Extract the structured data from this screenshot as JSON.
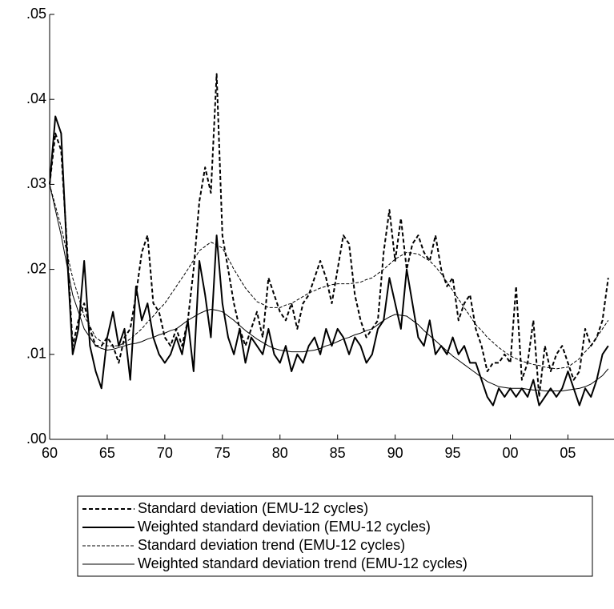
{
  "chart_data": {
    "type": "line",
    "x": [
      1960,
      1960.5,
      1961,
      1961.5,
      1962,
      1962.5,
      1963,
      1963.5,
      1964,
      1964.5,
      1965,
      1965.5,
      1966,
      1966.5,
      1967,
      1967.5,
      1968,
      1968.5,
      1969,
      1969.5,
      1970,
      1970.5,
      1971,
      1971.5,
      1972,
      1972.5,
      1973,
      1973.5,
      1974,
      1974.5,
      1975,
      1975.5,
      1976,
      1976.5,
      1977,
      1977.5,
      1978,
      1978.5,
      1979,
      1979.5,
      1980,
      1980.5,
      1981,
      1981.5,
      1982,
      1982.5,
      1983,
      1983.5,
      1984,
      1984.5,
      1985,
      1985.5,
      1986,
      1986.5,
      1987,
      1987.5,
      1988,
      1988.5,
      1989,
      1989.5,
      1990,
      1990.5,
      1991,
      1991.5,
      1992,
      1992.5,
      1993,
      1993.5,
      1994,
      1994.5,
      1995,
      1995.5,
      1996,
      1996.5,
      1997,
      1997.5,
      1998,
      1998.5,
      1999,
      1999.5,
      2000,
      2000.5,
      2001,
      2001.5,
      2002,
      2002.5,
      2003,
      2003.5,
      2004,
      2004.5,
      2005,
      2005.5,
      2006,
      2006.5,
      2007,
      2007.5,
      2008,
      2008.5
    ],
    "xlim": [
      1960,
      2009
    ],
    "xticks": [
      {
        "value": 1960,
        "label": "60"
      },
      {
        "value": 1965,
        "label": "65"
      },
      {
        "value": 1970,
        "label": "70"
      },
      {
        "value": 1975,
        "label": "75"
      },
      {
        "value": 1980,
        "label": "80"
      },
      {
        "value": 1985,
        "label": "85"
      },
      {
        "value": 1990,
        "label": "90"
      },
      {
        "value": 1995,
        "label": "95"
      },
      {
        "value": 2000,
        "label": "00"
      },
      {
        "value": 2005,
        "label": "05"
      }
    ],
    "ylim": [
      0,
      0.05
    ],
    "yticks": [
      {
        "value": 0,
        "label": ".00"
      },
      {
        "value": 0.01,
        "label": ".01"
      },
      {
        "value": 0.02,
        "label": ".02"
      },
      {
        "value": 0.03,
        "label": ".03"
      },
      {
        "value": 0.04,
        "label": ".04"
      },
      {
        "value": 0.05,
        "label": ".05"
      }
    ],
    "series": [
      {
        "name": "Standard deviation (EMU-12 cycles)",
        "color": "#000000",
        "style": "dashed",
        "width": "thick",
        "values": [
          0.03,
          0.036,
          0.034,
          0.023,
          0.011,
          0.014,
          0.016,
          0.013,
          0.011,
          0.011,
          0.012,
          0.011,
          0.009,
          0.012,
          0.013,
          0.017,
          0.022,
          0.024,
          0.016,
          0.015,
          0.012,
          0.011,
          0.013,
          0.011,
          0.014,
          0.02,
          0.028,
          0.032,
          0.029,
          0.043,
          0.024,
          0.02,
          0.016,
          0.013,
          0.011,
          0.013,
          0.015,
          0.012,
          0.019,
          0.017,
          0.015,
          0.014,
          0.016,
          0.013,
          0.016,
          0.017,
          0.019,
          0.021,
          0.019,
          0.016,
          0.02,
          0.024,
          0.023,
          0.017,
          0.014,
          0.012,
          0.013,
          0.014,
          0.022,
          0.027,
          0.021,
          0.026,
          0.02,
          0.023,
          0.024,
          0.022,
          0.021,
          0.024,
          0.02,
          0.018,
          0.019,
          0.014,
          0.016,
          0.017,
          0.013,
          0.011,
          0.008,
          0.009,
          0.009,
          0.01,
          0.009,
          0.018,
          0.007,
          0.009,
          0.014,
          0.005,
          0.011,
          0.008,
          0.01,
          0.011,
          0.009,
          0.007,
          0.008,
          0.013,
          0.011,
          0.012,
          0.014,
          0.019
        ]
      },
      {
        "name": "Weighted standard deviation (EMU-12 cycles)",
        "color": "#000000",
        "style": "solid",
        "width": "thick",
        "values": [
          0.03,
          0.038,
          0.036,
          0.022,
          0.01,
          0.013,
          0.021,
          0.011,
          0.008,
          0.006,
          0.012,
          0.015,
          0.011,
          0.013,
          0.007,
          0.018,
          0.014,
          0.016,
          0.012,
          0.01,
          0.009,
          0.01,
          0.012,
          0.01,
          0.014,
          0.008,
          0.021,
          0.017,
          0.012,
          0.024,
          0.016,
          0.012,
          0.01,
          0.013,
          0.009,
          0.012,
          0.011,
          0.01,
          0.013,
          0.01,
          0.009,
          0.011,
          0.008,
          0.01,
          0.009,
          0.011,
          0.012,
          0.01,
          0.013,
          0.011,
          0.013,
          0.012,
          0.01,
          0.012,
          0.011,
          0.009,
          0.01,
          0.013,
          0.014,
          0.019,
          0.016,
          0.013,
          0.02,
          0.016,
          0.012,
          0.011,
          0.014,
          0.01,
          0.011,
          0.01,
          0.012,
          0.01,
          0.011,
          0.009,
          0.009,
          0.007,
          0.005,
          0.004,
          0.006,
          0.005,
          0.006,
          0.005,
          0.006,
          0.005,
          0.007,
          0.004,
          0.005,
          0.006,
          0.005,
          0.006,
          0.008,
          0.006,
          0.004,
          0.006,
          0.005,
          0.007,
          0.01,
          0.011
        ]
      },
      {
        "name": "Standard deviation trend (EMU-12 cycles)",
        "color": "#000000",
        "style": "dashed",
        "width": "thin",
        "values": [
          0.03,
          0.0275,
          0.025,
          0.022,
          0.019,
          0.0168,
          0.0145,
          0.0133,
          0.012,
          0.0115,
          0.011,
          0.011,
          0.011,
          0.0114,
          0.0118,
          0.0124,
          0.013,
          0.0138,
          0.0145,
          0.0153,
          0.016,
          0.017,
          0.018,
          0.019,
          0.02,
          0.0211,
          0.0222,
          0.0227,
          0.0232,
          0.0229,
          0.0225,
          0.0213,
          0.02,
          0.0189,
          0.0178,
          0.017,
          0.0162,
          0.0159,
          0.0155,
          0.0155,
          0.0155,
          0.0158,
          0.016,
          0.0164,
          0.0168,
          0.0172,
          0.0175,
          0.0178,
          0.018,
          0.0182,
          0.0183,
          0.0183,
          0.0183,
          0.0184,
          0.0185,
          0.0188,
          0.019,
          0.0195,
          0.02,
          0.0206,
          0.0212,
          0.0216,
          0.022,
          0.0219,
          0.0218,
          0.0214,
          0.021,
          0.0203,
          0.0195,
          0.0185,
          0.0175,
          0.0165,
          0.0155,
          0.0145,
          0.0135,
          0.0128,
          0.012,
          0.0114,
          0.0108,
          0.0103,
          0.0098,
          0.0095,
          0.0092,
          0.009,
          0.0088,
          0.0087,
          0.0085,
          0.0084,
          0.0083,
          0.0084,
          0.0085,
          0.009,
          0.0095,
          0.0103,
          0.011,
          0.012,
          0.013,
          0.014
        ]
      },
      {
        "name": "Weighted standard deviation trend (EMU-12 cycles)",
        "color": "#000000",
        "style": "solid",
        "width": "thin",
        "values": [
          0.03,
          0.027,
          0.024,
          0.0205,
          0.017,
          0.015,
          0.013,
          0.012,
          0.011,
          0.0107,
          0.0105,
          0.0106,
          0.0108,
          0.011,
          0.0112,
          0.0113,
          0.0115,
          0.0118,
          0.012,
          0.0123,
          0.0125,
          0.0128,
          0.013,
          0.0135,
          0.014,
          0.0144,
          0.0148,
          0.0151,
          0.0153,
          0.0152,
          0.015,
          0.0145,
          0.014,
          0.0134,
          0.0128,
          0.0123,
          0.0118,
          0.0114,
          0.011,
          0.0107,
          0.0105,
          0.0104,
          0.0103,
          0.0103,
          0.0103,
          0.0104,
          0.0105,
          0.0107,
          0.011,
          0.0112,
          0.0115,
          0.0118,
          0.012,
          0.0123,
          0.0125,
          0.0128,
          0.013,
          0.0135,
          0.014,
          0.0144,
          0.0147,
          0.0146,
          0.0145,
          0.014,
          0.0135,
          0.0128,
          0.0122,
          0.0116,
          0.011,
          0.0104,
          0.0098,
          0.0093,
          0.0088,
          0.0083,
          0.0078,
          0.0073,
          0.0068,
          0.0065,
          0.0062,
          0.0061,
          0.006,
          0.006,
          0.006,
          0.0059,
          0.0058,
          0.0058,
          0.0057,
          0.0057,
          0.0057,
          0.0057,
          0.0058,
          0.0059,
          0.006,
          0.0062,
          0.0065,
          0.007,
          0.0075,
          0.0083
        ]
      }
    ],
    "legend": "bottom"
  }
}
